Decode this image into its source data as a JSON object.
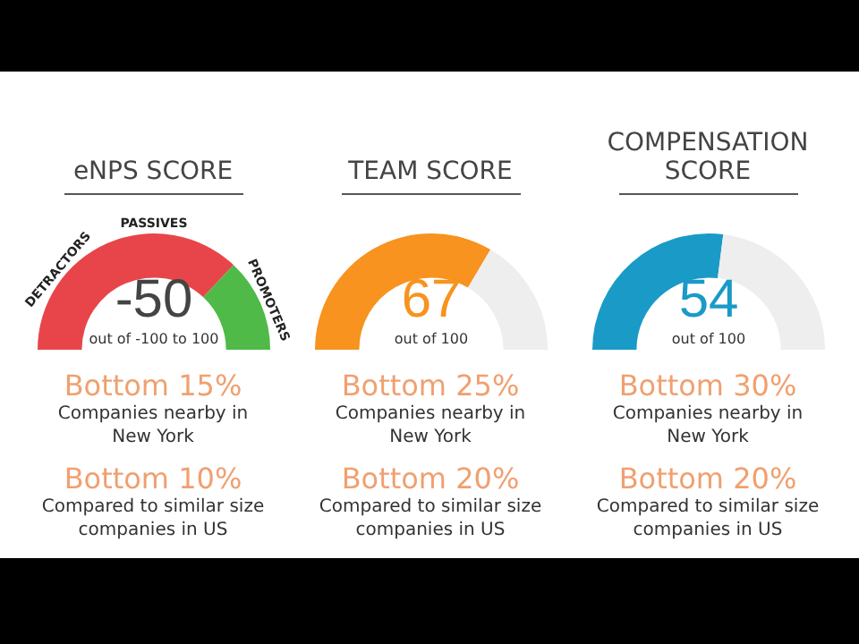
{
  "chart_data": [
    {
      "type": "donut",
      "title": "eNPS SCORE",
      "categories": [
        "DETRACTORS",
        "PROMOTERS"
      ],
      "values": [
        74,
        26
      ],
      "colors": [
        "#e8454a",
        "#4fba48"
      ],
      "annotations": [
        "PASSIVES",
        "-50",
        "out of -100 to 100",
        "Bottom 15%",
        "Companies nearby in New York",
        "Bottom 10%",
        "Compared to similar size companies in US"
      ]
    },
    {
      "type": "donut",
      "title": "TEAM SCORE",
      "categories": [
        null,
        null
      ],
      "values": [
        67,
        33
      ],
      "colors": [
        "#f7931e",
        "#eeeeee"
      ],
      "annotations": [
        "67",
        "out of 100",
        "Bottom 25%",
        "Companies nearby in New York",
        "Bottom 20%",
        "Compared to similar size companies in US"
      ]
    },
    {
      "type": "donut",
      "title": "COMPENSATION SCORE",
      "categories": [
        null,
        null
      ],
      "values": [
        54,
        46
      ],
      "colors": [
        "#1a9ac7",
        "#eeeeee"
      ],
      "annotations": [
        "54",
        "out of 100",
        "Bottom 30%",
        "Companies nearby in New York",
        "Bottom 20%",
        "Compared to similar size companies in US"
      ]
    }
  ]
}
